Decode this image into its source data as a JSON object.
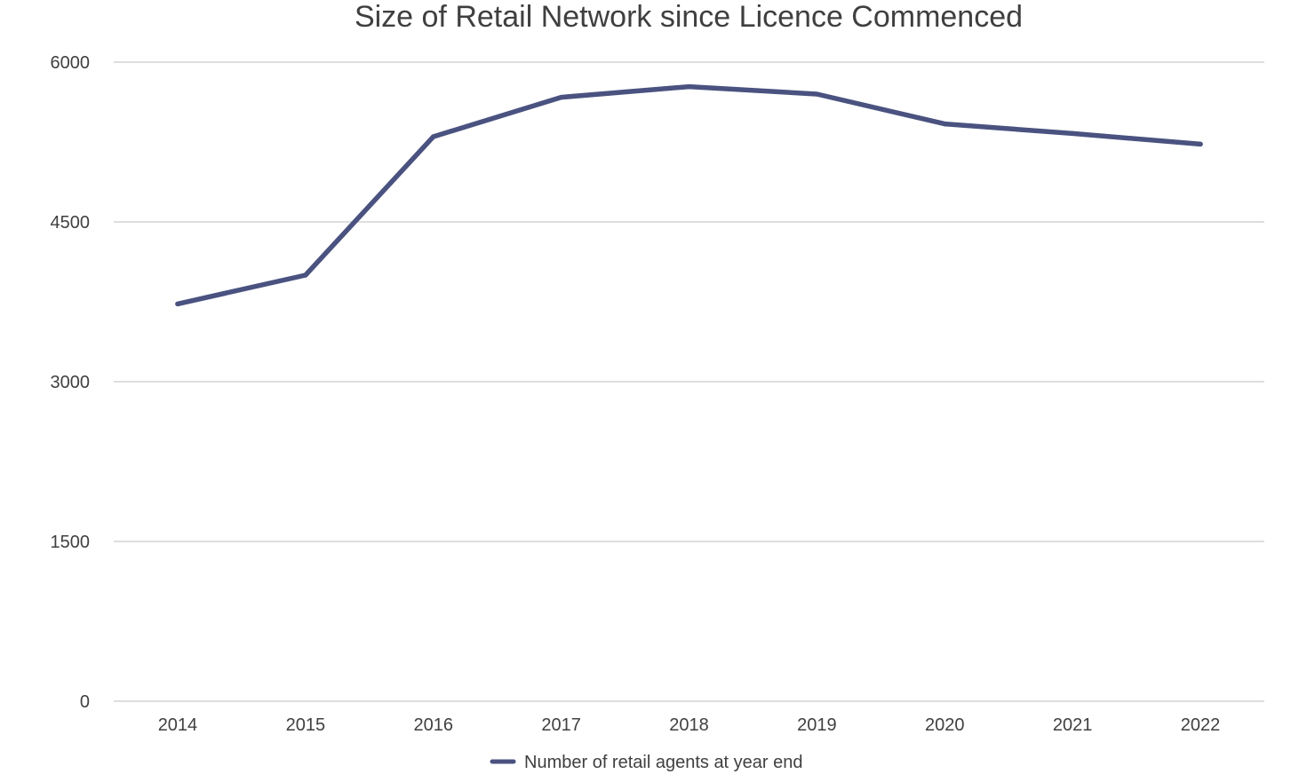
{
  "chart_data": {
    "type": "line",
    "title": "Size of Retail Network since Licence Commenced",
    "xlabel": "",
    "ylabel": "",
    "categories": [
      "2014",
      "2015",
      "2016",
      "2017",
      "2018",
      "2019",
      "2020",
      "2021",
      "2022"
    ],
    "series": [
      {
        "name": "Number of retail agents at year end",
        "values": [
          3730,
          4000,
          5300,
          5670,
          5770,
          5700,
          5420,
          5330,
          5230
        ],
        "color": "#4a5280"
      }
    ],
    "yticks": [
      "0",
      "1500",
      "3000",
      "4500",
      "6000"
    ],
    "ylim": [
      0,
      6000
    ],
    "grid": true,
    "legend_position": "bottom-center"
  }
}
